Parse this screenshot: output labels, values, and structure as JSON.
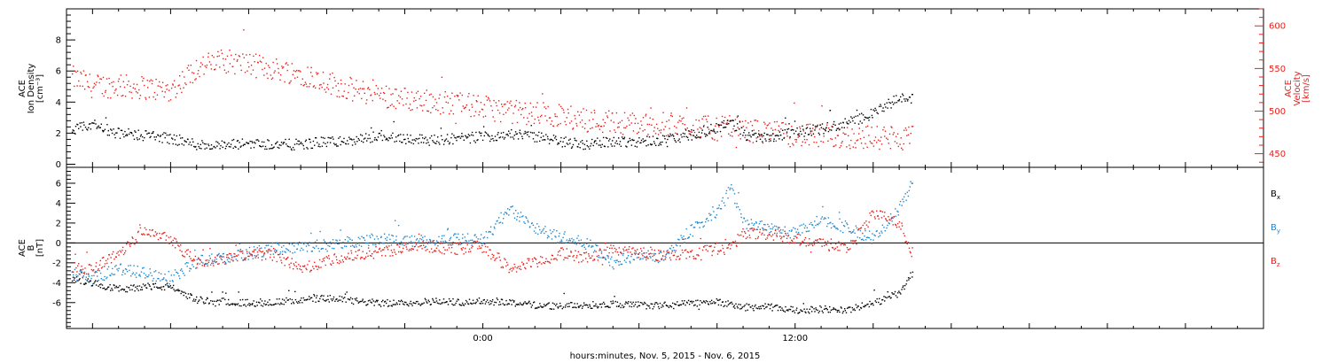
{
  "chart_data": [
    {
      "type": "scatter",
      "panel": "top",
      "x_domain_hours": [
        -16,
        30
      ],
      "x_ticks": [
        {
          "hour": 0,
          "label": "0:00"
        },
        {
          "hour": 12,
          "label": "12:00"
        }
      ],
      "left_axis": {
        "title_lines": [
          "ACE",
          "Ion Density",
          "[cm⁻³]"
        ],
        "ylim": [
          -0.2,
          10.0
        ],
        "ticks": [
          0,
          2,
          4,
          6,
          8
        ],
        "color": "#000000"
      },
      "right_axis": {
        "title_lines": [
          "ACE",
          "Velocity",
          "[km/s]"
        ],
        "ylim": [
          434,
          620
        ],
        "ticks": [
          450,
          500,
          550,
          600
        ],
        "color": "#e8201c"
      },
      "series": [
        {
          "color": "#000000",
          "axis": "left",
          "x": [
            -15.8,
            -15.0,
            -14.0,
            -13.0,
            -12.0,
            -11.0,
            -10.0,
            -9.0,
            -8.0,
            -7.0,
            -6.0,
            -5.0,
            -4.0,
            -3.0,
            -2.0,
            -1.0,
            0.0,
            1.0,
            2.0,
            3.0,
            4.0,
            5.0,
            6.0,
            7.0,
            8.0,
            9.0,
            9.5,
            10.0,
            11.0,
            12.0,
            13.0,
            14.0,
            15.0,
            16.0,
            16.5
          ],
          "y": [
            2.2,
            2.6,
            2.0,
            1.9,
            1.7,
            1.3,
            1.2,
            1.4,
            1.3,
            1.3,
            1.5,
            1.5,
            1.9,
            1.7,
            1.6,
            1.7,
            1.8,
            2.0,
            1.8,
            1.5,
            1.3,
            1.5,
            1.5,
            1.6,
            1.9,
            2.4,
            2.8,
            1.9,
            1.8,
            2.1,
            2.3,
            2.7,
            3.3,
            4.3,
            4.2
          ]
        },
        {
          "color": "#e8201c",
          "axis": "right",
          "x": [
            -15.8,
            -15.0,
            -14.0,
            -13.0,
            -12.0,
            -11.0,
            -10.0,
            -9.0,
            -8.0,
            -7.0,
            -6.0,
            -5.0,
            -4.0,
            -3.0,
            -2.0,
            -1.0,
            0.0,
            1.0,
            2.0,
            3.0,
            4.0,
            5.0,
            6.0,
            7.0,
            8.0,
            9.0,
            9.5,
            10.0,
            11.0,
            12.0,
            13.0,
            14.0,
            15.0,
            16.0,
            16.5
          ],
          "y": [
            540,
            530,
            530,
            528,
            525,
            552,
            560,
            555,
            550,
            545,
            535,
            525,
            520,
            515,
            512,
            510,
            505,
            500,
            498,
            495,
            490,
            488,
            485,
            485,
            483,
            480,
            482,
            478,
            476,
            472,
            471,
            470,
            470,
            468,
            470
          ]
        }
      ]
    },
    {
      "type": "scatter",
      "panel": "bottom",
      "x_domain_hours": [
        -16,
        30
      ],
      "x_ticks": [
        {
          "hour": 0,
          "label": "0:00"
        },
        {
          "hour": 12,
          "label": "12:00"
        }
      ],
      "xlabel": "hours:minutes, Nov.  5, 2015 - Nov.  6, 2015",
      "left_axis": {
        "title_lines": [
          "ACE",
          "B",
          "[nT]"
        ],
        "ylim": [
          -8.6,
          7.6
        ],
        "ticks": [
          -6,
          -4,
          -2,
          0,
          2,
          4,
          6
        ],
        "color": "#000000"
      },
      "zero_line": true,
      "series": [
        {
          "name": "B",
          "subscript": "x",
          "color": "#000000",
          "x": [
            -15.8,
            -15.0,
            -14.0,
            -13.0,
            -12.0,
            -11.0,
            -10.0,
            -9.0,
            -8.0,
            -7.0,
            -6.0,
            -5.0,
            -4.0,
            -3.0,
            -2.0,
            -1.0,
            0.0,
            1.0,
            2.0,
            3.0,
            4.0,
            5.0,
            6.0,
            7.0,
            8.0,
            9.0,
            9.5,
            10.0,
            11.0,
            12.0,
            13.0,
            14.0,
            15.0,
            16.0,
            16.5
          ],
          "y": [
            -3.5,
            -4.0,
            -4.6,
            -4.3,
            -4.4,
            -5.7,
            -5.8,
            -6.0,
            -5.9,
            -5.7,
            -5.5,
            -5.8,
            -6.0,
            -6.0,
            -5.8,
            -5.9,
            -5.8,
            -5.9,
            -6.2,
            -6.3,
            -6.2,
            -6.1,
            -6.2,
            -6.3,
            -6.0,
            -5.8,
            -6.2,
            -6.4,
            -6.4,
            -6.7,
            -6.6,
            -6.7,
            -6.0,
            -5.0,
            -3.0
          ]
        },
        {
          "name": "B",
          "subscript": "y",
          "color": "#1e88d0",
          "x": [
            -15.8,
            -15.0,
            -14.0,
            -13.0,
            -12.0,
            -11.0,
            -10.0,
            -9.0,
            -8.0,
            -7.0,
            -6.0,
            -5.0,
            -4.0,
            -3.0,
            -2.0,
            -1.0,
            0.0,
            1.0,
            2.0,
            3.0,
            4.0,
            5.0,
            6.0,
            7.0,
            8.0,
            9.0,
            9.5,
            10.0,
            11.0,
            12.0,
            13.0,
            14.0,
            15.0,
            16.0,
            16.5
          ],
          "y": [
            -3.0,
            -3.5,
            -2.5,
            -3.0,
            -3.5,
            -1.8,
            -1.5,
            -1.0,
            -0.5,
            -0.3,
            -0.2,
            0.2,
            0.5,
            0.3,
            0.2,
            0.5,
            0.3,
            3.5,
            1.5,
            0.5,
            0.0,
            -2.0,
            -1.0,
            -1.5,
            1.5,
            3.0,
            5.5,
            2.0,
            1.5,
            1.0,
            2.5,
            1.5,
            0.5,
            3.5,
            6.0
          ]
        },
        {
          "name": "B",
          "subscript": "z",
          "color": "#e8201c",
          "x": [
            -15.8,
            -15.0,
            -14.0,
            -13.0,
            -12.0,
            -11.0,
            -10.0,
            -9.0,
            -8.0,
            -7.0,
            -6.0,
            -5.0,
            -4.0,
            -3.0,
            -2.0,
            -1.0,
            0.0,
            1.0,
            2.0,
            3.0,
            4.0,
            5.0,
            6.0,
            7.0,
            8.0,
            9.0,
            9.5,
            10.0,
            11.0,
            12.0,
            13.0,
            14.0,
            15.0,
            16.0,
            16.5
          ],
          "y": [
            -2.5,
            -2.5,
            -1.0,
            1.5,
            0.5,
            -2.0,
            -1.5,
            -1.0,
            -1.2,
            -2.5,
            -1.8,
            -1.2,
            -0.8,
            -0.5,
            -0.3,
            -0.5,
            -0.3,
            -2.5,
            -2.0,
            -1.0,
            -1.5,
            -0.5,
            -1.0,
            -1.2,
            -1.0,
            -0.5,
            -0.5,
            1.0,
            1.0,
            0.5,
            0.0,
            -0.5,
            3.0,
            2.0,
            -1.0
          ]
        }
      ]
    }
  ]
}
